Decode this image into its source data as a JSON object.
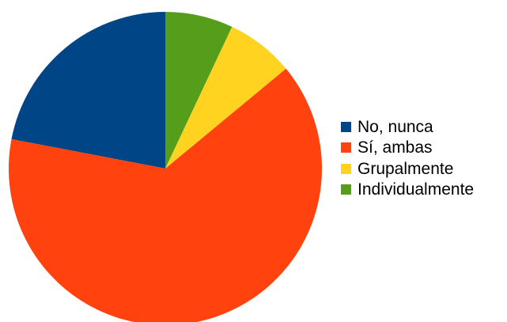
{
  "chart_data": {
    "type": "pie",
    "categories": [
      "No, nunca",
      "Sí, ambas",
      "Grupalmente",
      "Individualmente"
    ],
    "values": [
      22,
      64,
      7,
      7
    ],
    "colors": [
      "#004586",
      "#ff420e",
      "#ffd320",
      "#579d1c"
    ],
    "start_angle_deg": 0,
    "direction": "counterclockwise",
    "legend_position": "right"
  }
}
